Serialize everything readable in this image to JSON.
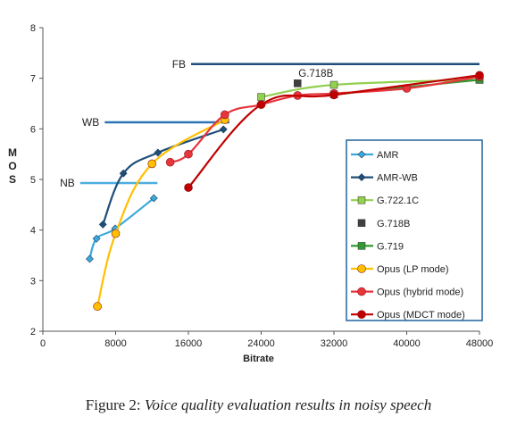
{
  "chart_data": {
    "type": "line",
    "title": "",
    "xlabel": "Bitrate",
    "ylabel": "MOS",
    "xlim": [
      0,
      48000
    ],
    "ylim": [
      2,
      8
    ],
    "x_ticks": [
      0,
      8000,
      16000,
      24000,
      32000,
      40000,
      48000
    ],
    "x_tick_labels": [
      "0",
      "8000",
      "16000",
      "24000",
      "32000",
      "40000",
      "48000"
    ],
    "y_ticks": [
      2,
      3,
      4,
      5,
      6,
      7,
      8
    ],
    "y_tick_labels": [
      "2",
      "3",
      "4",
      "5",
      "6",
      "7",
      "8"
    ],
    "grid": false,
    "legend_position": "right",
    "reference_lines": [
      {
        "label": "FB",
        "y": 7.28,
        "x_start": 16300,
        "x_end": 48000,
        "color": "#1f4e79"
      },
      {
        "label": "WB",
        "y": 6.13,
        "x_start": 6800,
        "x_end": 20500,
        "color": "#2e75b6"
      },
      {
        "label": "NB",
        "y": 4.93,
        "x_start": 4100,
        "x_end": 12600,
        "color": "#4baee0"
      }
    ],
    "annotations": [
      {
        "text": "G.718B",
        "x": 28000,
        "y": 7.1
      }
    ],
    "series": [
      {
        "name": "AMR",
        "color": "#3aa9dc",
        "marker": "diamond",
        "line": true,
        "points": [
          [
            5150,
            3.43
          ],
          [
            5900,
            3.83
          ],
          [
            7950,
            4.03
          ],
          [
            12200,
            4.63
          ]
        ]
      },
      {
        "name": "AMR-WB",
        "color": "#1f4e79",
        "marker": "diamond",
        "line": true,
        "points": [
          [
            6600,
            4.11
          ],
          [
            8850,
            5.12
          ],
          [
            12650,
            5.53
          ],
          [
            19850,
            5.99
          ]
        ]
      },
      {
        "name": "G.722.1C",
        "color": "#92d050",
        "marker": "square",
        "line": true,
        "points": [
          [
            24000,
            6.63
          ],
          [
            32000,
            6.87
          ],
          [
            48000,
            6.97
          ]
        ]
      },
      {
        "name": "G.718B",
        "color": "#404040",
        "marker": "square",
        "line": false,
        "points": [
          [
            28000,
            6.9
          ]
        ]
      },
      {
        "name": "G.719",
        "color": "#339933",
        "marker": "square",
        "line": true,
        "points": [
          [
            32000,
            6.68
          ],
          [
            48000,
            6.97
          ]
        ]
      },
      {
        "name": "Opus (LP mode)",
        "color": "#ffc000",
        "marker": "circle",
        "line": true,
        "points": [
          [
            6000,
            2.49
          ],
          [
            8000,
            3.93
          ],
          [
            12000,
            5.31
          ],
          [
            20000,
            6.18
          ]
        ]
      },
      {
        "name": "Opus (hybrid mode)",
        "color": "#e8343c",
        "marker": "circle",
        "line": true,
        "points": [
          [
            14000,
            5.34
          ],
          [
            16000,
            5.5
          ],
          [
            20000,
            6.28
          ],
          [
            24000,
            6.48
          ],
          [
            28000,
            6.66
          ],
          [
            32000,
            6.7
          ],
          [
            40000,
            6.8
          ],
          [
            48000,
            7.03
          ]
        ]
      },
      {
        "name": "Opus (MDCT mode)",
        "color": "#c00000",
        "marker": "circle",
        "line": true,
        "points": [
          [
            16000,
            4.84
          ],
          [
            24000,
            6.48
          ],
          [
            32000,
            6.67
          ],
          [
            48000,
            7.06
          ]
        ]
      }
    ]
  },
  "caption": {
    "label": "Figure 2:",
    "text": "Voice quality evaluation results in noisy speech"
  }
}
